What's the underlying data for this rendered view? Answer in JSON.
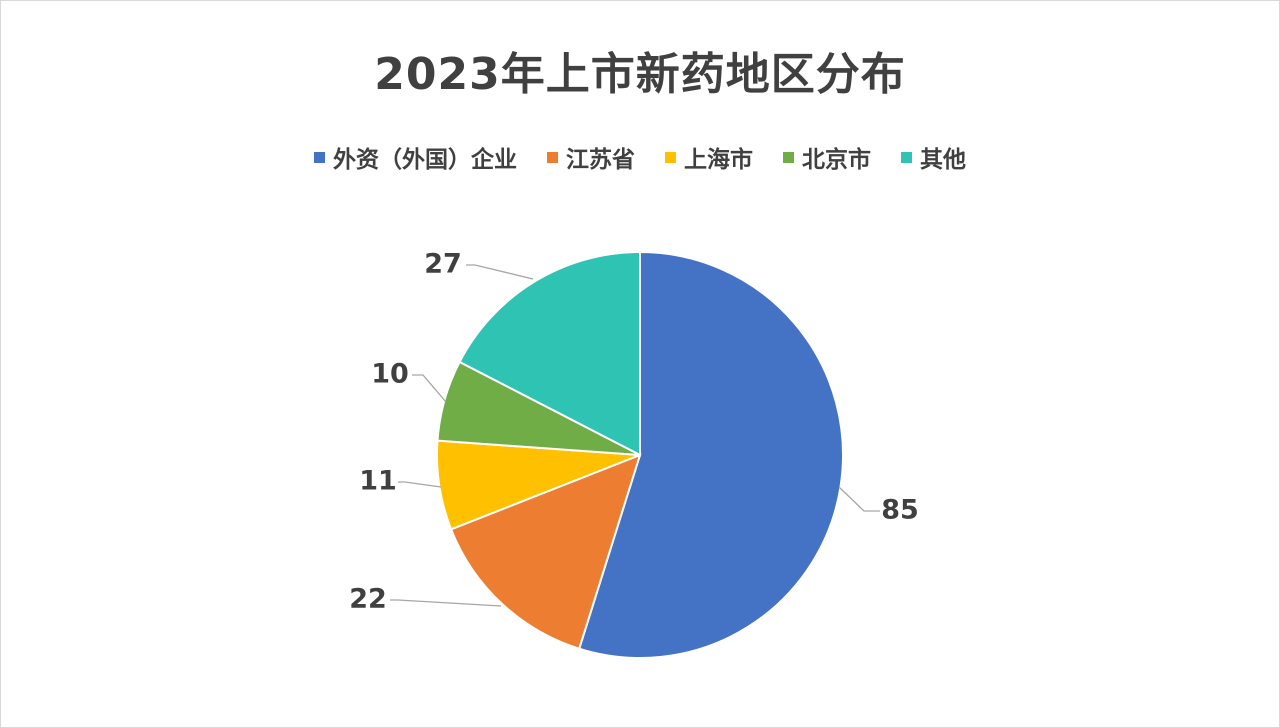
{
  "chart_data": {
    "type": "pie",
    "title": "2023年上市新药地区分布",
    "categories": [
      "外资（外国）企业",
      "江苏省",
      "上海市",
      "北京市",
      "其他"
    ],
    "values": [
      85,
      22,
      11,
      10,
      27
    ],
    "colors": [
      "#4472C4",
      "#ED7D31",
      "#FFC000",
      "#70AD47",
      "#2EC3B3"
    ],
    "legend_position": "top",
    "start_angle": "12 o'clock",
    "direction": "clockwise"
  }
}
